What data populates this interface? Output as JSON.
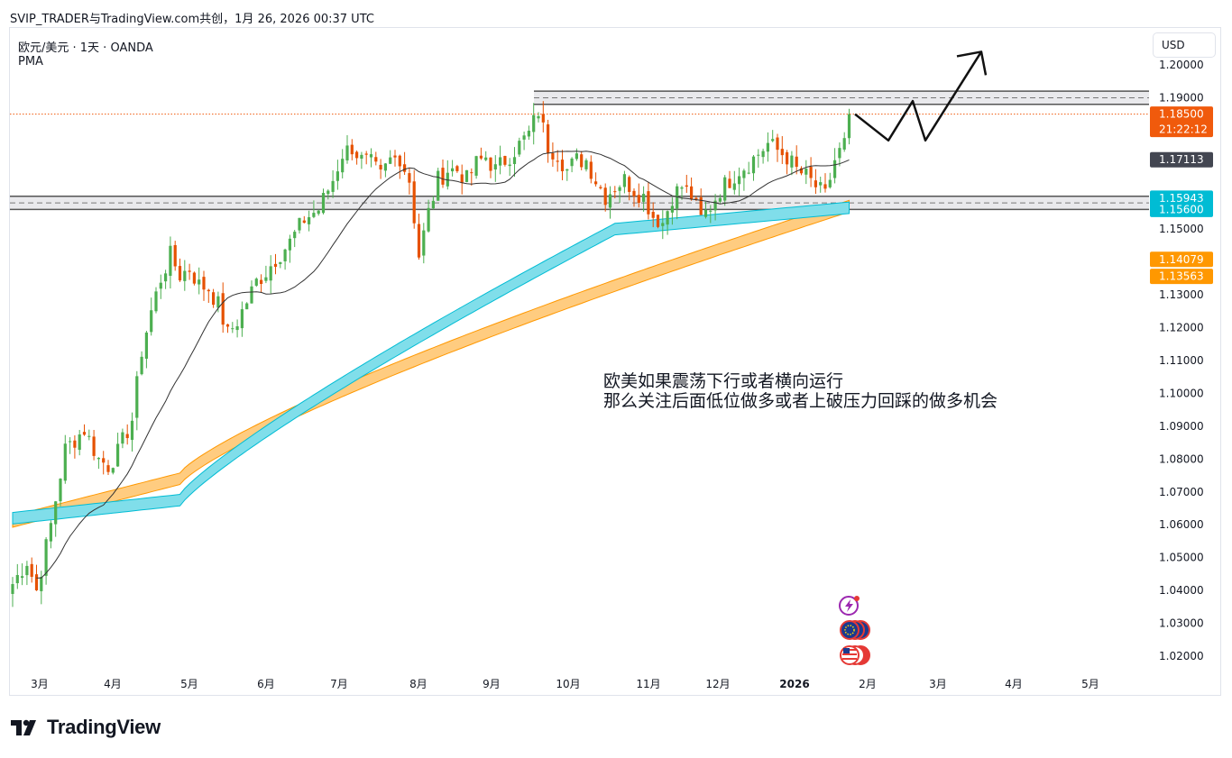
{
  "header": {
    "title": "SVIP_TRADER与TradingView.com共创，1月 26, 2026 00:37 UTC"
  },
  "symbol_line": "欧元/美元 · 1天 · OANDA",
  "indicator_label": "PMA",
  "currency_button": "USD",
  "annotation": {
    "line1": "欧美如果震荡下行或者横向运行",
    "line2": "那么关注后面低位做多或者上破压力回踩的做多机会"
  },
  "price_tags": [
    {
      "label": "1.18500",
      "sub": "21:22:12",
      "color": "#f05a0c"
    },
    {
      "label": "1.17113",
      "color": "#434651"
    },
    {
      "label": "1.15943",
      "color": "#00bcd4"
    },
    {
      "label": "1.15600",
      "color": "#00bcd4"
    },
    {
      "label": "1.14079",
      "color": "#ff9800"
    },
    {
      "label": "1.13563",
      "color": "#ff9800"
    }
  ],
  "logo_text": "TradingView",
  "colors": {
    "up": "#4caf50",
    "down": "#e65100",
    "ema_fast_band": "#80deea",
    "ema_slow_band": "#ffcc80",
    "sma_line": "#333333",
    "zone_fill": "#e9e9ec"
  },
  "chart_data": {
    "type": "candlestick",
    "symbol": "EUR/USD",
    "timeframe": "1D",
    "ylim": [
      1.012,
      1.213
    ],
    "y_ticks": [
      "1.20000",
      "1.19000",
      "1.18000",
      "1.17000",
      "1.16000",
      "1.15000",
      "1.14000",
      "1.13000",
      "1.12000",
      "1.11000",
      "1.10000",
      "1.09000",
      "1.08000",
      "1.07000",
      "1.06000",
      "1.05000",
      "1.04000",
      "1.03000",
      "1.02000"
    ],
    "x_ticks": [
      "3月",
      "4月",
      "5月",
      "6月",
      "7月",
      "8月",
      "9月",
      "10月",
      "11月",
      "12月",
      "2026",
      "2月",
      "3月",
      "4月",
      "5月"
    ],
    "price_close_path": [
      [
        0,
        1.042
      ],
      [
        3,
        1.049
      ],
      [
        5,
        1.04
      ],
      [
        8,
        1.06
      ],
      [
        11,
        1.083
      ],
      [
        15,
        1.089
      ],
      [
        18,
        1.08
      ],
      [
        20,
        1.078
      ],
      [
        22,
        1.082
      ],
      [
        25,
        1.092
      ],
      [
        27,
        1.113
      ],
      [
        29,
        1.125
      ],
      [
        31,
        1.135
      ],
      [
        33,
        1.142
      ],
      [
        35,
        1.136
      ],
      [
        37,
        1.138
      ],
      [
        39,
        1.133
      ],
      [
        41,
        1.132
      ],
      [
        43,
        1.127
      ],
      [
        45,
        1.118
      ],
      [
        47,
        1.122
      ],
      [
        49,
        1.128
      ],
      [
        51,
        1.134
      ],
      [
        53,
        1.137
      ],
      [
        55,
        1.141
      ],
      [
        58,
        1.146
      ],
      [
        61,
        1.153
      ],
      [
        64,
        1.156
      ],
      [
        67,
        1.165
      ],
      [
        69,
        1.173
      ],
      [
        71,
        1.175
      ],
      [
        73,
        1.171
      ],
      [
        75,
        1.17
      ],
      [
        77,
        1.166
      ],
      [
        79,
        1.171
      ],
      [
        81,
        1.172
      ],
      [
        83,
        1.165
      ],
      [
        85,
        1.142
      ],
      [
        87,
        1.155
      ],
      [
        89,
        1.165
      ],
      [
        91,
        1.168
      ],
      [
        93,
        1.168
      ],
      [
        95,
        1.165
      ],
      [
        97,
        1.17
      ],
      [
        99,
        1.172
      ],
      [
        101,
        1.168
      ],
      [
        103,
        1.171
      ],
      [
        105,
        1.174
      ],
      [
        108,
        1.179
      ],
      [
        110,
        1.186
      ],
      [
        112,
        1.175
      ],
      [
        114,
        1.173
      ],
      [
        116,
        1.168
      ],
      [
        118,
        1.171
      ],
      [
        120,
        1.171
      ],
      [
        122,
        1.165
      ],
      [
        124,
        1.16
      ],
      [
        126,
        1.163
      ],
      [
        128,
        1.165
      ],
      [
        130,
        1.162
      ],
      [
        132,
        1.16
      ],
      [
        134,
        1.154
      ],
      [
        136,
        1.152
      ],
      [
        138,
        1.16
      ],
      [
        140,
        1.163
      ],
      [
        142,
        1.16
      ],
      [
        144,
        1.153
      ],
      [
        146,
        1.157
      ],
      [
        148,
        1.162
      ],
      [
        150,
        1.165
      ],
      [
        152,
        1.168
      ],
      [
        154,
        1.17
      ],
      [
        156,
        1.173
      ],
      [
        158,
        1.176
      ],
      [
        160,
        1.174
      ],
      [
        162,
        1.172
      ],
      [
        164,
        1.168
      ],
      [
        166,
        1.166
      ],
      [
        168,
        1.163
      ],
      [
        170,
        1.16
      ],
      [
        172,
        1.171
      ],
      [
        174,
        1.176
      ],
      [
        175,
        1.185
      ]
    ],
    "levels": {
      "resistance_zone": [
        1.188,
        1.192
      ],
      "support_zone": [
        1.156,
        1.16
      ],
      "last_price": 1.185
    },
    "projection_path": [
      [
        0,
        1.185
      ],
      [
        1,
        1.177
      ],
      [
        2,
        1.189
      ],
      [
        3,
        1.177
      ],
      [
        4,
        1.204
      ]
    ]
  }
}
